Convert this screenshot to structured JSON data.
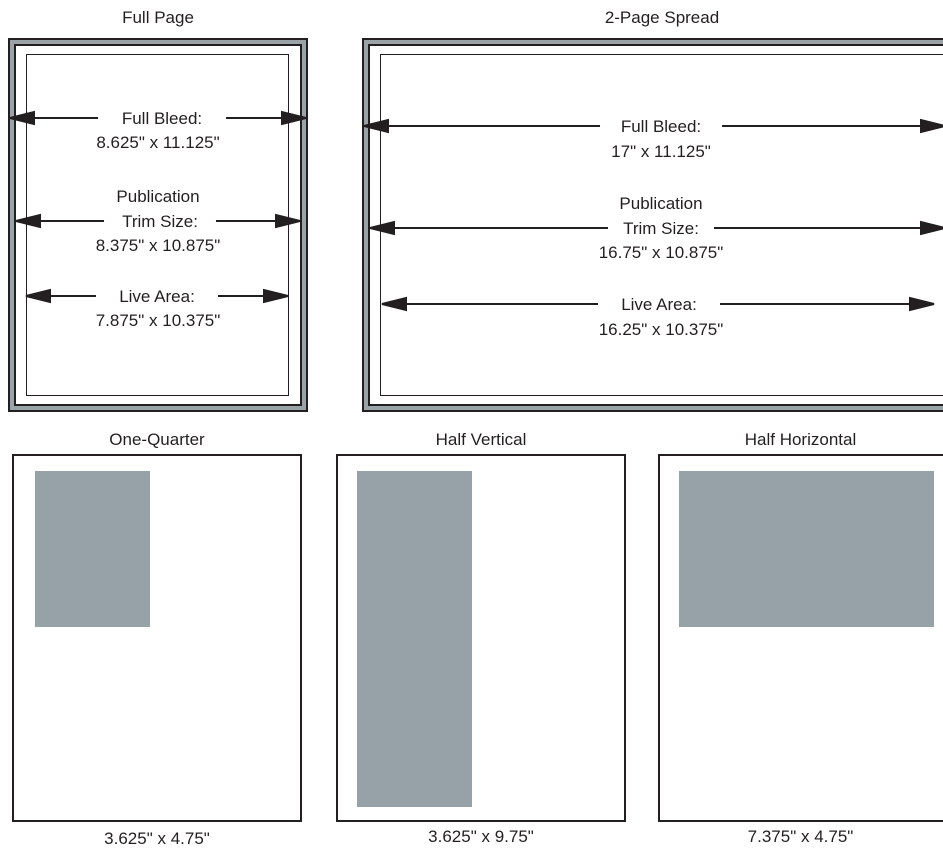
{
  "full_page": {
    "title": "Full Page",
    "full_bleed_label": "Full Bleed:",
    "full_bleed_value": "8.625\" x 11.125\"",
    "trim_label_1": "Publication",
    "trim_label_2": "Trim Size:",
    "trim_value": "8.375\" x 10.875\"",
    "live_label": "Live Area:",
    "live_value": "7.875\" x 10.375\""
  },
  "spread": {
    "title": "2-Page Spread",
    "full_bleed_label": "Full Bleed:",
    "full_bleed_value": "17\" x 11.125\"",
    "trim_label_1": "Publication",
    "trim_label_2": "Trim Size:",
    "trim_value": "16.75\" x 10.875\"",
    "live_label": "Live Area:",
    "live_value": "16.25\" x 10.375\""
  },
  "one_quarter": {
    "title": "One-Quarter",
    "size": "3.625\" x 4.75\""
  },
  "half_vertical": {
    "title": "Half Vertical",
    "size": "3.625\" x 9.75\""
  },
  "half_horizontal": {
    "title": "Half Horizontal",
    "size": "7.375\" x 4.75\""
  },
  "colors": {
    "ink": "#231f20",
    "ad_fill": "#96a2a8",
    "bleed_band": "#9aa3a8"
  }
}
